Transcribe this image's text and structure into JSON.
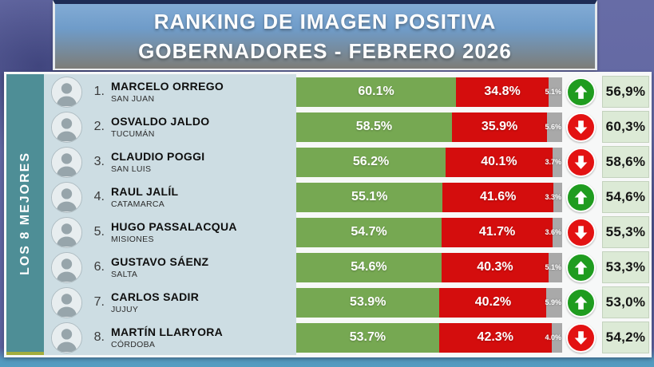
{
  "title": {
    "line1": "RANKING DE IMAGEN POSITIVA",
    "line2": "GOBERNADORES - FEBRERO 2026"
  },
  "sidebar": {
    "label": "LOS 8 MEJORES"
  },
  "colors": {
    "positive_green": "#76a852",
    "negative_red": "#d40d0d",
    "undecided_gray": "#a9a9a9",
    "trend_up_green": "#1f9c1f",
    "trend_down_red": "#e31212",
    "sidebar_teal": "#4e8e96",
    "previous_cell_green": "#dcead6",
    "info_background": "#cddde3",
    "banner_top_blue": "#82abd5",
    "banner_bottom_gray": "#7d7d78"
  },
  "chart_data": {
    "type": "bar",
    "orientation": "horizontal-stacked",
    "title": "RANKING DE IMAGEN POSITIVA GOBERNADORES - FEBRERO 2026",
    "group_label": "LOS 8 MEJORES",
    "categories": [
      "MARCELO ORREGO (SAN JUAN)",
      "OSVALDO JALDO (TUCUMÁN)",
      "CLAUDIO POGGI (SAN LUIS)",
      "RAUL JALÍL (CATAMARCA)",
      "HUGO PASSALACQUA (MISIONES)",
      "GUSTAVO SÁENZ (SALTA)",
      "CARLOS SADIR (JUJUY)",
      "MARTÍN LLARYORA (CÓRDOBA)"
    ],
    "series": [
      {
        "name": "positive",
        "color": "#76a852",
        "values": [
          60.1,
          58.5,
          56.2,
          55.1,
          54.7,
          54.6,
          53.9,
          53.7
        ]
      },
      {
        "name": "negative",
        "color": "#d40d0d",
        "values": [
          34.8,
          35.9,
          40.1,
          41.6,
          41.7,
          40.3,
          40.2,
          42.3
        ]
      },
      {
        "name": "undecided",
        "color": "#a9a9a9",
        "values": [
          5.1,
          5.6,
          3.7,
          3.3,
          3.6,
          5.1,
          5.9,
          4.0
        ]
      }
    ],
    "previous_values": [
      56.9,
      60.3,
      58.6,
      54.6,
      55.3,
      53.3,
      53.0,
      54.2
    ],
    "trend": [
      "up",
      "down",
      "down",
      "up",
      "down",
      "up",
      "up",
      "down"
    ],
    "xlim": [
      0,
      100
    ],
    "legend": "none",
    "grid": false
  },
  "rows": [
    {
      "rank": "1.",
      "name": "MARCELO ORREGO",
      "province": "SAN JUAN",
      "positive": "60.1%",
      "negative": "34.8%",
      "undecided": "5.1%",
      "previous": "56,9%",
      "trend": "up",
      "pos": 60.1,
      "neg": 34.8,
      "und": 5.1
    },
    {
      "rank": "2.",
      "name": "OSVALDO JALDO",
      "province": "TUCUMÁN",
      "positive": "58.5%",
      "negative": "35.9%",
      "undecided": "5.6%",
      "previous": "60,3%",
      "trend": "down",
      "pos": 58.5,
      "neg": 35.9,
      "und": 5.6
    },
    {
      "rank": "3.",
      "name": "CLAUDIO POGGI",
      "province": "SAN LUIS",
      "positive": "56.2%",
      "negative": "40.1%",
      "undecided": "3.7%",
      "previous": "58,6%",
      "trend": "down",
      "pos": 56.2,
      "neg": 40.1,
      "und": 3.7
    },
    {
      "rank": "4.",
      "name": "RAUL JALÍL",
      "province": "CATAMARCA",
      "positive": "55.1%",
      "negative": "41.6%",
      "undecided": "3.3%",
      "previous": "54,6%",
      "trend": "up",
      "pos": 55.1,
      "neg": 41.6,
      "und": 3.3
    },
    {
      "rank": "5.",
      "name": "HUGO PASSALACQUA",
      "province": "MISIONES",
      "positive": "54.7%",
      "negative": "41.7%",
      "undecided": "3.6%",
      "previous": "55,3%",
      "trend": "down",
      "pos": 54.7,
      "neg": 41.7,
      "und": 3.6
    },
    {
      "rank": "6.",
      "name": "GUSTAVO SÁENZ",
      "province": "SALTA",
      "positive": "54.6%",
      "negative": "40.3%",
      "undecided": "5.1%",
      "previous": "53,3%",
      "trend": "up",
      "pos": 54.6,
      "neg": 40.3,
      "und": 5.1
    },
    {
      "rank": "7.",
      "name": "CARLOS SADIR",
      "province": "JUJUY",
      "positive": "53.9%",
      "negative": "40.2%",
      "undecided": "5.9%",
      "previous": "53,0%",
      "trend": "up",
      "pos": 53.9,
      "neg": 40.2,
      "und": 5.9
    },
    {
      "rank": "8.",
      "name": "MARTÍN LLARYORA",
      "province": "CÓRDOBA",
      "positive": "53.7%",
      "negative": "42.3%",
      "undecided": "4.0%",
      "previous": "54,2%",
      "trend": "down",
      "pos": 53.7,
      "neg": 42.3,
      "und": 4.0
    }
  ]
}
